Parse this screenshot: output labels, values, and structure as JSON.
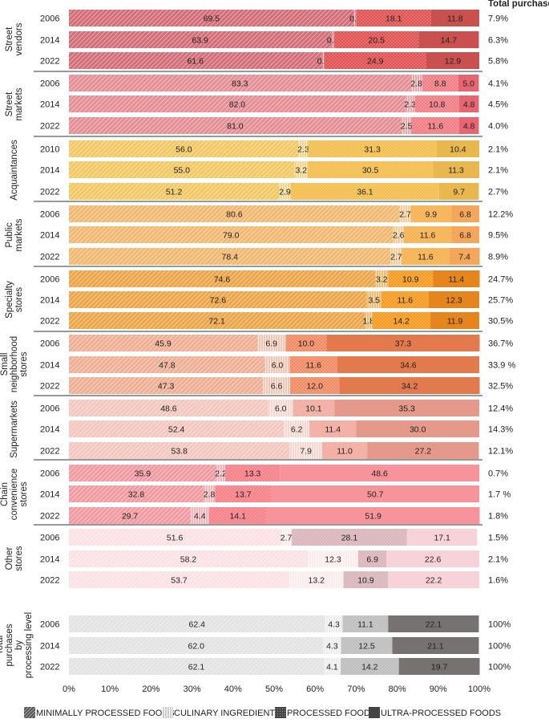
{
  "chart_data": {
    "type": "stacked_bar_horizontal",
    "series_names": [
      "MINIMALLY PROCESSED FOODS",
      "CULINARY INGREDIENTS",
      "PROCESSED FOODS",
      "ULTRA-PROCESSED FOODS"
    ],
    "total_header": "Total purchases",
    "x_ticks": [
      "0%",
      "10%",
      "20%",
      "30%",
      "40%",
      "50%",
      "60%",
      "70%",
      "80%",
      "90%",
      "100%"
    ],
    "xlim": [
      0,
      100
    ],
    "groups": [
      {
        "name": "Street vendors",
        "label_lines": [
          "Street",
          "vendors"
        ],
        "colors": [
          "#d36d78",
          "#e27c80",
          "#e05252",
          "#c8504f"
        ],
        "rows": [
          {
            "year": "2006",
            "values": [
              69.5,
              0.6,
              18.1,
              11.8
            ],
            "labels": [
              "69.5",
              "0.6",
              "18.1",
              "11.8"
            ],
            "total": "7.9%"
          },
          {
            "year": "2014",
            "values": [
              63.9,
              0.8,
              20.5,
              14.7
            ],
            "labels": [
              "63.9",
              "0.8",
              "20.5",
              "14.7"
            ],
            "total": "6.3%"
          },
          {
            "year": "2022",
            "values": [
              61.6,
              0.6,
              24.9,
              12.9
            ],
            "labels": [
              "61.6",
              "0.6",
              "24.9",
              "12.9"
            ],
            "total": "5.8%"
          }
        ]
      },
      {
        "name": "Street markets",
        "label_lines": [
          "Street",
          "markets"
        ],
        "colors": [
          "#e48e95",
          "#eaa0a6",
          "#f07c84",
          "#e66572"
        ],
        "rows": [
          {
            "year": "2006",
            "values": [
              83.3,
              2.8,
              8.8,
              5.0
            ],
            "labels": [
              "83.3",
              "2.8",
              "8.8",
              "5.0"
            ],
            "total": "4.1%"
          },
          {
            "year": "2014",
            "values": [
              82.0,
              2.3,
              10.8,
              4.8
            ],
            "labels": [
              "82.0",
              "2.3",
              "10.8",
              "4.8"
            ],
            "total": "4.5%"
          },
          {
            "year": "2022",
            "values": [
              81.0,
              2.5,
              11.6,
              4.8
            ],
            "labels": [
              "81.0",
              "2.5",
              "11.6",
              "4.8"
            ],
            "total": "4.0%"
          }
        ]
      },
      {
        "name": "Acquaintances",
        "label_lines": [
          "Acquaintances"
        ],
        "colors": [
          "#f2c865",
          "#f4d17f",
          "#f3be4d",
          "#e8b84f"
        ],
        "rows": [
          {
            "year": "2010",
            "values": [
              56.0,
              2.3,
              31.3,
              10.4
            ],
            "labels": [
              "56.0",
              "2.3",
              "31.3",
              "10.4"
            ],
            "total": "2.1%"
          },
          {
            "year": "2014",
            "values": [
              55.0,
              3.2,
              30.5,
              11.3
            ],
            "labels": [
              "55.0",
              "3.2",
              "30.5",
              "11.3"
            ],
            "total": "2.1%"
          },
          {
            "year": "2022",
            "values": [
              51.2,
              2.9,
              36.1,
              9.7
            ],
            "labels": [
              "51.2",
              "2.9",
              "36.1",
              "9.7"
            ],
            "total": "2.7%"
          }
        ]
      },
      {
        "name": "Public markets",
        "label_lines": [
          "Public",
          "markets"
        ],
        "colors": [
          "#f1b871",
          "#f4c78e",
          "#f6b04d",
          "#f4a65b"
        ],
        "rows": [
          {
            "year": "2006",
            "values": [
              80.6,
              2.7,
              9.9,
              6.8
            ],
            "labels": [
              "80.6",
              "2.7",
              "9.9",
              "6.8"
            ],
            "total": "12.2%"
          },
          {
            "year": "2014",
            "values": [
              79.0,
              2.6,
              11.6,
              6.8
            ],
            "labels": [
              "79.0",
              "2.6",
              "11.6",
              "6.8"
            ],
            "total": "9.5%"
          },
          {
            "year": "2022",
            "values": [
              78.4,
              2.7,
              11.6,
              7.4
            ],
            "labels": [
              "78.4",
              "2.7",
              "11.6",
              "7.4"
            ],
            "total": "8.9%"
          }
        ]
      },
      {
        "name": "Specialty stores",
        "label_lines": [
          "Specialty",
          "stores"
        ],
        "colors": [
          "#eca548",
          "#f0b664",
          "#f59a1f",
          "#e5851e"
        ],
        "rows": [
          {
            "year": "2006",
            "values": [
              74.6,
              3.2,
              10.9,
              11.4
            ],
            "labels": [
              "74.6",
              "3.2",
              "10.9",
              "11.4"
            ],
            "total": "24.7%"
          },
          {
            "year": "2014",
            "values": [
              72.6,
              3.5,
              11.6,
              12.3
            ],
            "labels": [
              "72.6",
              "3.5",
              "11.6",
              "12.3"
            ],
            "total": "25.7%"
          },
          {
            "year": "2022",
            "values": [
              72.1,
              1.8,
              14.2,
              11.9
            ],
            "labels": [
              "72.1",
              "1.8",
              "14.2",
              "11.9"
            ],
            "total": "30.5%"
          }
        ]
      },
      {
        "name": "Small neighborhood stores",
        "label_lines": [
          "Small",
          "neighborhood",
          "stores"
        ],
        "colors": [
          "#eeaf94",
          "#f2c2ae",
          "#f08a62",
          "#e37a4e"
        ],
        "rows": [
          {
            "year": "2006",
            "values": [
              45.9,
              6.9,
              10.0,
              37.3
            ],
            "labels": [
              "45.9",
              "6.9",
              "10.0",
              "37.3"
            ],
            "total": "36.7%"
          },
          {
            "year": "2014",
            "values": [
              47.8,
              6.0,
              11.6,
              34.6
            ],
            "labels": [
              "47.8",
              "6.0",
              "11.6",
              "34.6"
            ],
            "total": "33.9 %"
          },
          {
            "year": "2022",
            "values": [
              47.3,
              6.6,
              12.0,
              34.2
            ],
            "labels": [
              "47.3",
              "6.6",
              "12.0",
              "34.2"
            ],
            "total": "32.5%"
          }
        ]
      },
      {
        "name": "Supermarkets",
        "label_lines": [
          "Supermarkets"
        ],
        "colors": [
          "#f3c7bf",
          "#f5d3cb",
          "#f2aa9e",
          "#e4998a"
        ],
        "rows": [
          {
            "year": "2006",
            "values": [
              48.6,
              6.0,
              10.1,
              35.3
            ],
            "labels": [
              "48.6",
              "6.0",
              "10.1",
              "35.3"
            ],
            "total": "12.4%"
          },
          {
            "year": "2014",
            "values": [
              52.4,
              6.2,
              11.4,
              30.0
            ],
            "labels": [
              "52.4",
              "6.2",
              "11.4",
              "30.0"
            ],
            "total": "14.3%"
          },
          {
            "year": "2022",
            "values": [
              53.8,
              7.9,
              11.0,
              27.2
            ],
            "labels": [
              "53.8",
              "7.9",
              "11.0",
              "27.2"
            ],
            "total": "12.1%"
          }
        ]
      },
      {
        "name": "Chain convenience stores",
        "label_lines": [
          "Chain",
          "convenience",
          "stores"
        ],
        "colors": [
          "#f19aa1",
          "#f4aeb3",
          "#f77f88",
          "#f7939a"
        ],
        "rows": [
          {
            "year": "2006",
            "values": [
              35.9,
              2.2,
              13.3,
              48.6
            ],
            "labels": [
              "35.9",
              "2.2",
              "13.3",
              "48.6"
            ],
            "total": "0.7%"
          },
          {
            "year": "2014",
            "values": [
              32.8,
              2.8,
              13.7,
              50.7
            ],
            "labels": [
              "32.8",
              "2.8",
              "13.7",
              "50.7"
            ],
            "total": "1.7 %"
          },
          {
            "year": "2022",
            "values": [
              29.7,
              4.4,
              14.1,
              51.9
            ],
            "labels": [
              "29.7",
              "4.4",
              "14.1",
              "51.9"
            ],
            "total": "1.8%"
          }
        ]
      },
      {
        "name": "Other stores",
        "label_lines": [
          "Other",
          "stores"
        ],
        "colors": [
          "#fbe1e5",
          "#fce8eb",
          "#d9b5bb",
          "#f7d3d9"
        ],
        "rows": [
          {
            "year": "2006",
            "values": [
              51.6,
              2.7,
              28.1,
              17.1
            ],
            "labels": [
              "51.6",
              "2.7",
              "28.1",
              "17.1"
            ],
            "total": "1.5%"
          },
          {
            "year": "2014",
            "values": [
              58.2,
              12.3,
              6.9,
              22.6
            ],
            "labels": [
              "58.2",
              "12.3",
              "6.9",
              "22.6"
            ],
            "total": "2.1%"
          },
          {
            "year": "2022",
            "values": [
              53.7,
              13.2,
              10.9,
              22.2
            ],
            "labels": [
              "53.7",
              "13.2",
              "10.9",
              "22.2"
            ],
            "total": "1.6%"
          }
        ]
      },
      {
        "name": "Total purchases by processing level",
        "label_lines": [
          "Total",
          "purchases",
          "by",
          "processing level"
        ],
        "colors": [
          "#e3e3e3",
          "#ebebeb",
          "#bdbdbd",
          "#777272"
        ],
        "rows": [
          {
            "year": "2006",
            "values": [
              62.4,
              4.3,
              11.1,
              22.1
            ],
            "labels": [
              "62.4",
              "4.3",
              "11.1",
              "22.1"
            ],
            "total": "100%"
          },
          {
            "year": "2014",
            "values": [
              62.0,
              4.3,
              12.5,
              21.1
            ],
            "labels": [
              "62.0",
              "4.3",
              "12.5",
              "21.1"
            ],
            "total": "100%"
          },
          {
            "year": "2022",
            "values": [
              62.1,
              4.1,
              14.2,
              19.7
            ],
            "labels": [
              "62.1",
              "4.1",
              "14.2",
              "19.7"
            ],
            "total": "100%"
          }
        ]
      }
    ],
    "legend": [
      {
        "label": "MINIMALLY PROCESSED FOODS",
        "color": "#888888"
      },
      {
        "label": "CULINARY INGREDIENTS",
        "color": "#bbbbbb"
      },
      {
        "label": "PROCESSED FOODS",
        "color": "#444444"
      },
      {
        "label": "ULTRA-PROCESSED FOODS",
        "color": "#444444"
      }
    ]
  }
}
